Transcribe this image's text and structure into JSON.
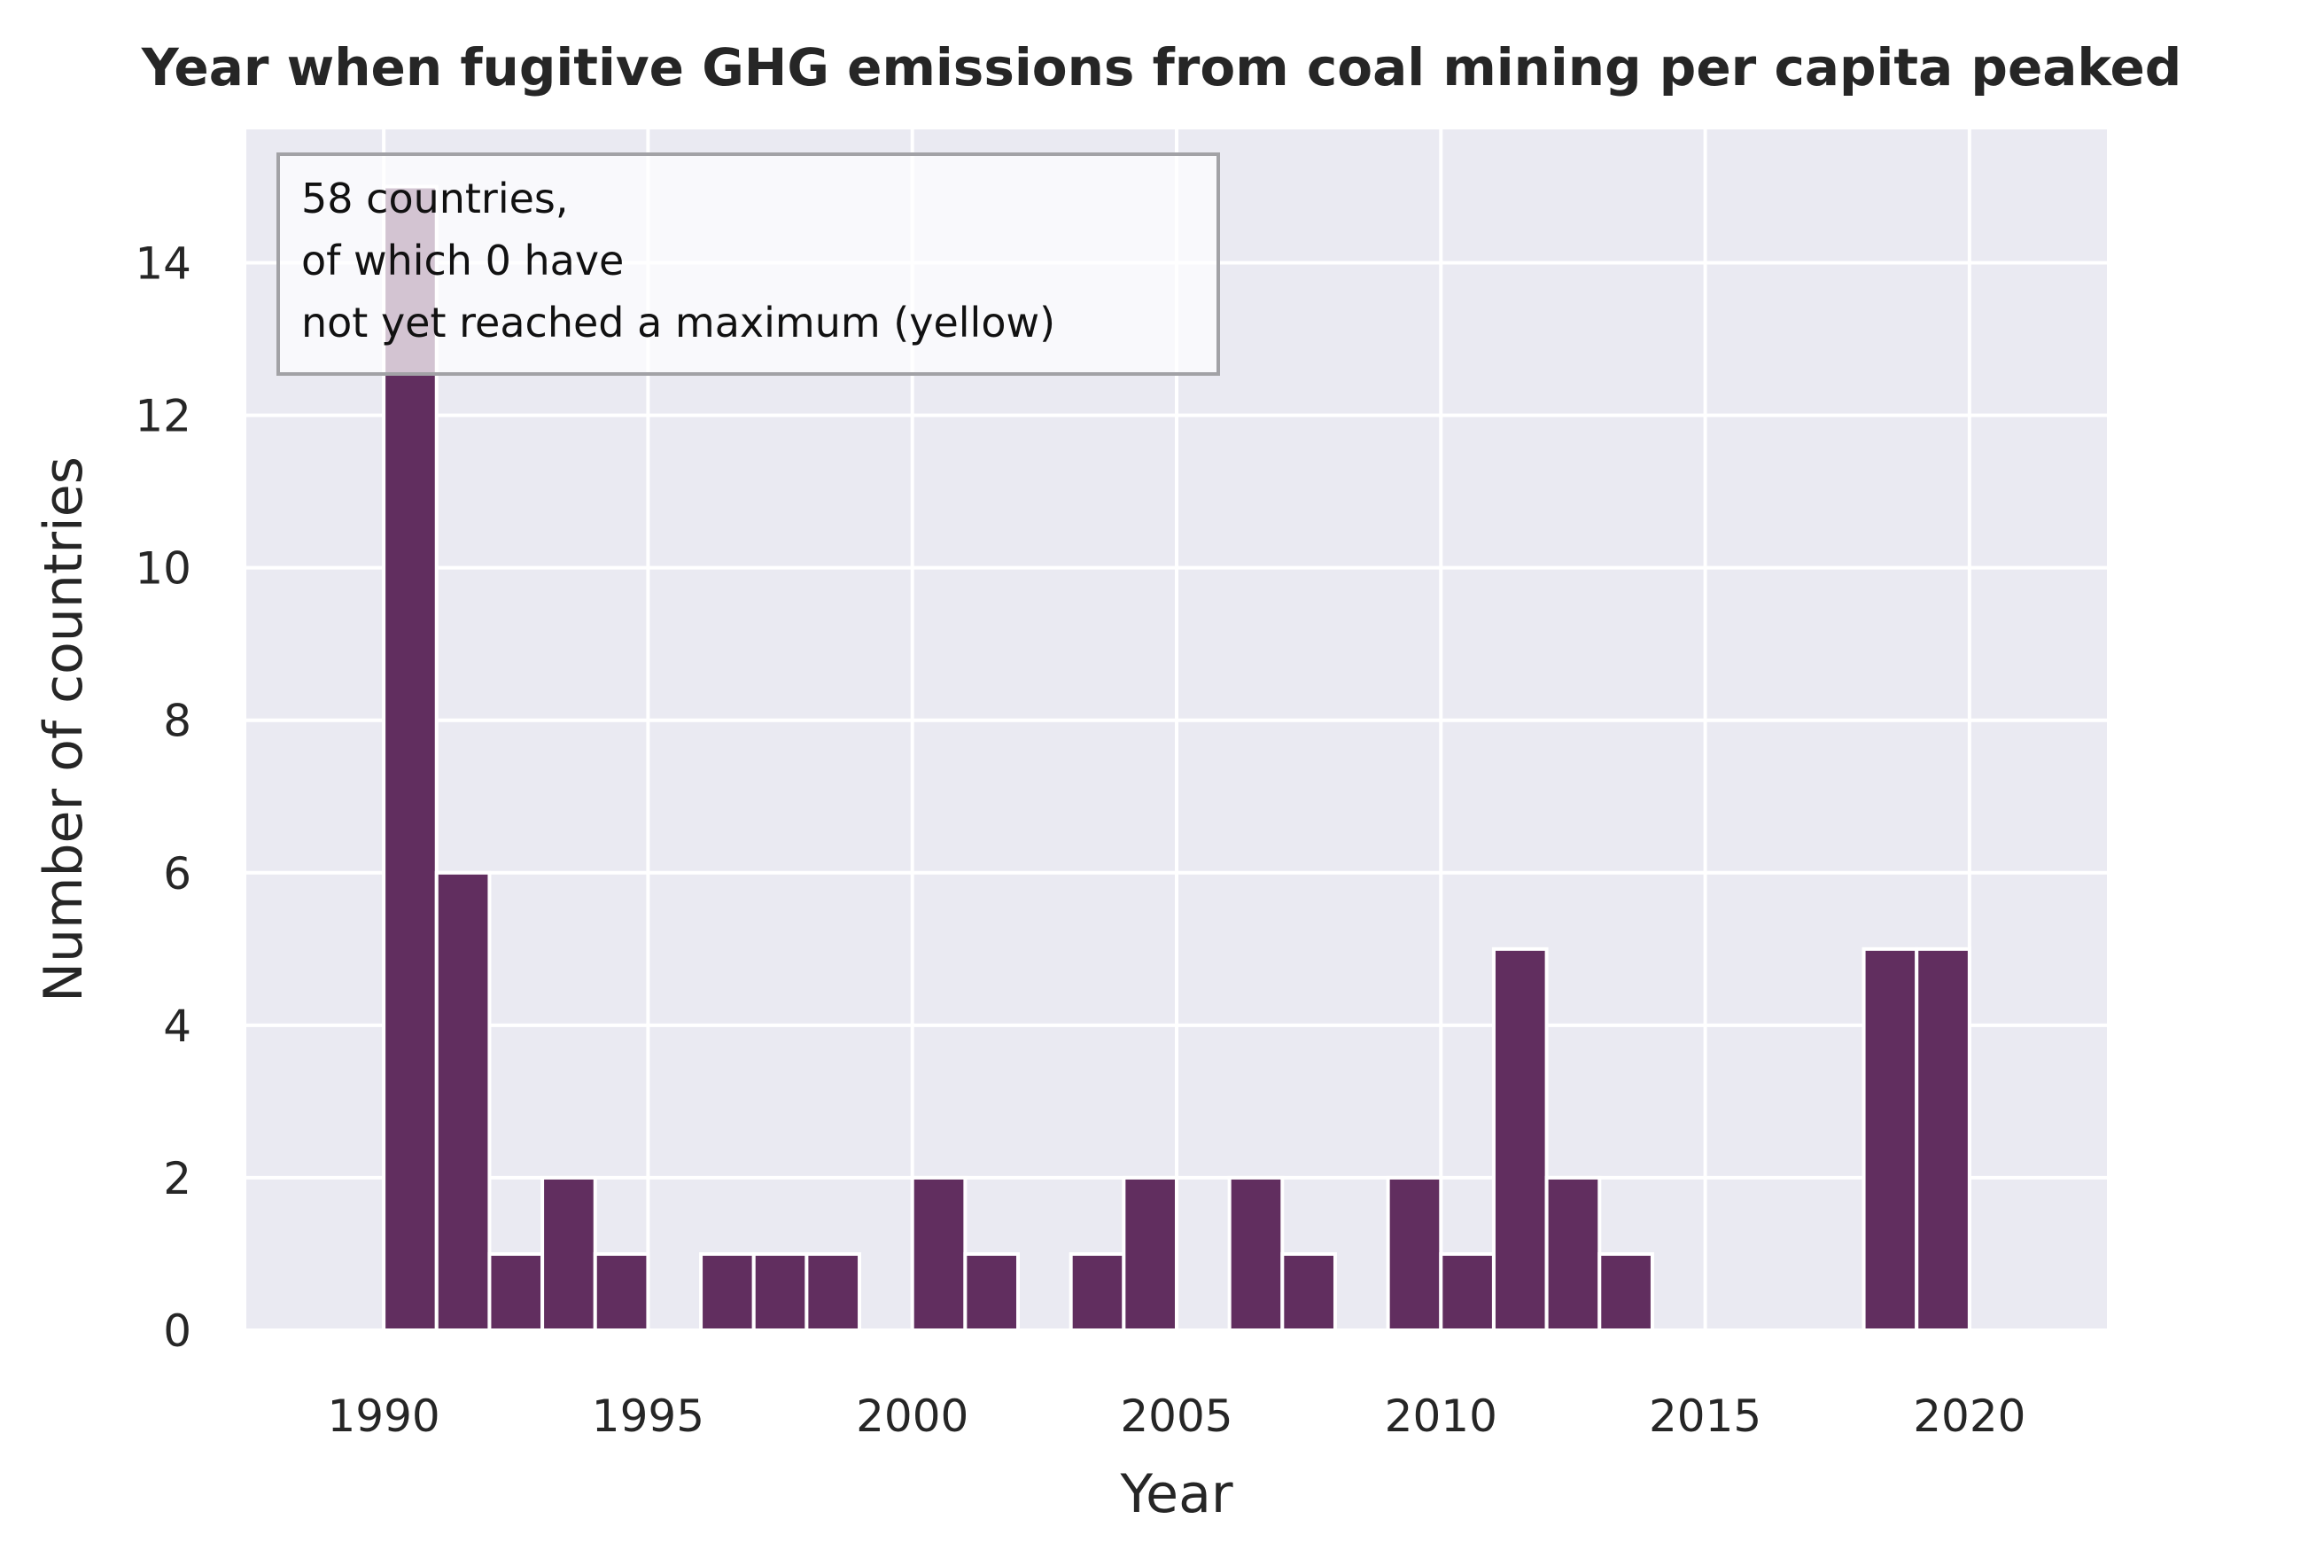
{
  "chart_data": {
    "type": "bar",
    "title": "Year when fugitive GHG emissions from coal mining per capita peaked",
    "xlabel": "Year",
    "ylabel": "Number of countries",
    "x": [
      1990,
      1991,
      1992,
      1993,
      1994,
      1996,
      1997,
      1998,
      2000,
      2001,
      2003,
      2004,
      2006,
      2007,
      2009,
      2010,
      2011,
      2012,
      2013,
      2018,
      2019
    ],
    "values": [
      15,
      6,
      1,
      2,
      1,
      1,
      1,
      1,
      2,
      1,
      1,
      2,
      2,
      1,
      2,
      1,
      5,
      2,
      1,
      5,
      5
    ],
    "xlim": [
      1987.4,
      2022.6
    ],
    "ylim": [
      0,
      15.75
    ],
    "xticks": [
      "1990",
      "1995",
      "2000",
      "2005",
      "2010",
      "2015",
      "2020"
    ],
    "yticks": [
      "0",
      "2",
      "4",
      "6",
      "8",
      "10",
      "12",
      "14"
    ],
    "grid": true,
    "annotation": {
      "lines": [
        "58 countries,",
        "of which 0 have",
        "not yet reached a maximum (yellow)"
      ],
      "placement": "top-left"
    },
    "colors": {
      "bar": "#612e5f",
      "plot_background": "#eaeaf2",
      "grid": "#ffffff",
      "text": "#262626"
    }
  }
}
